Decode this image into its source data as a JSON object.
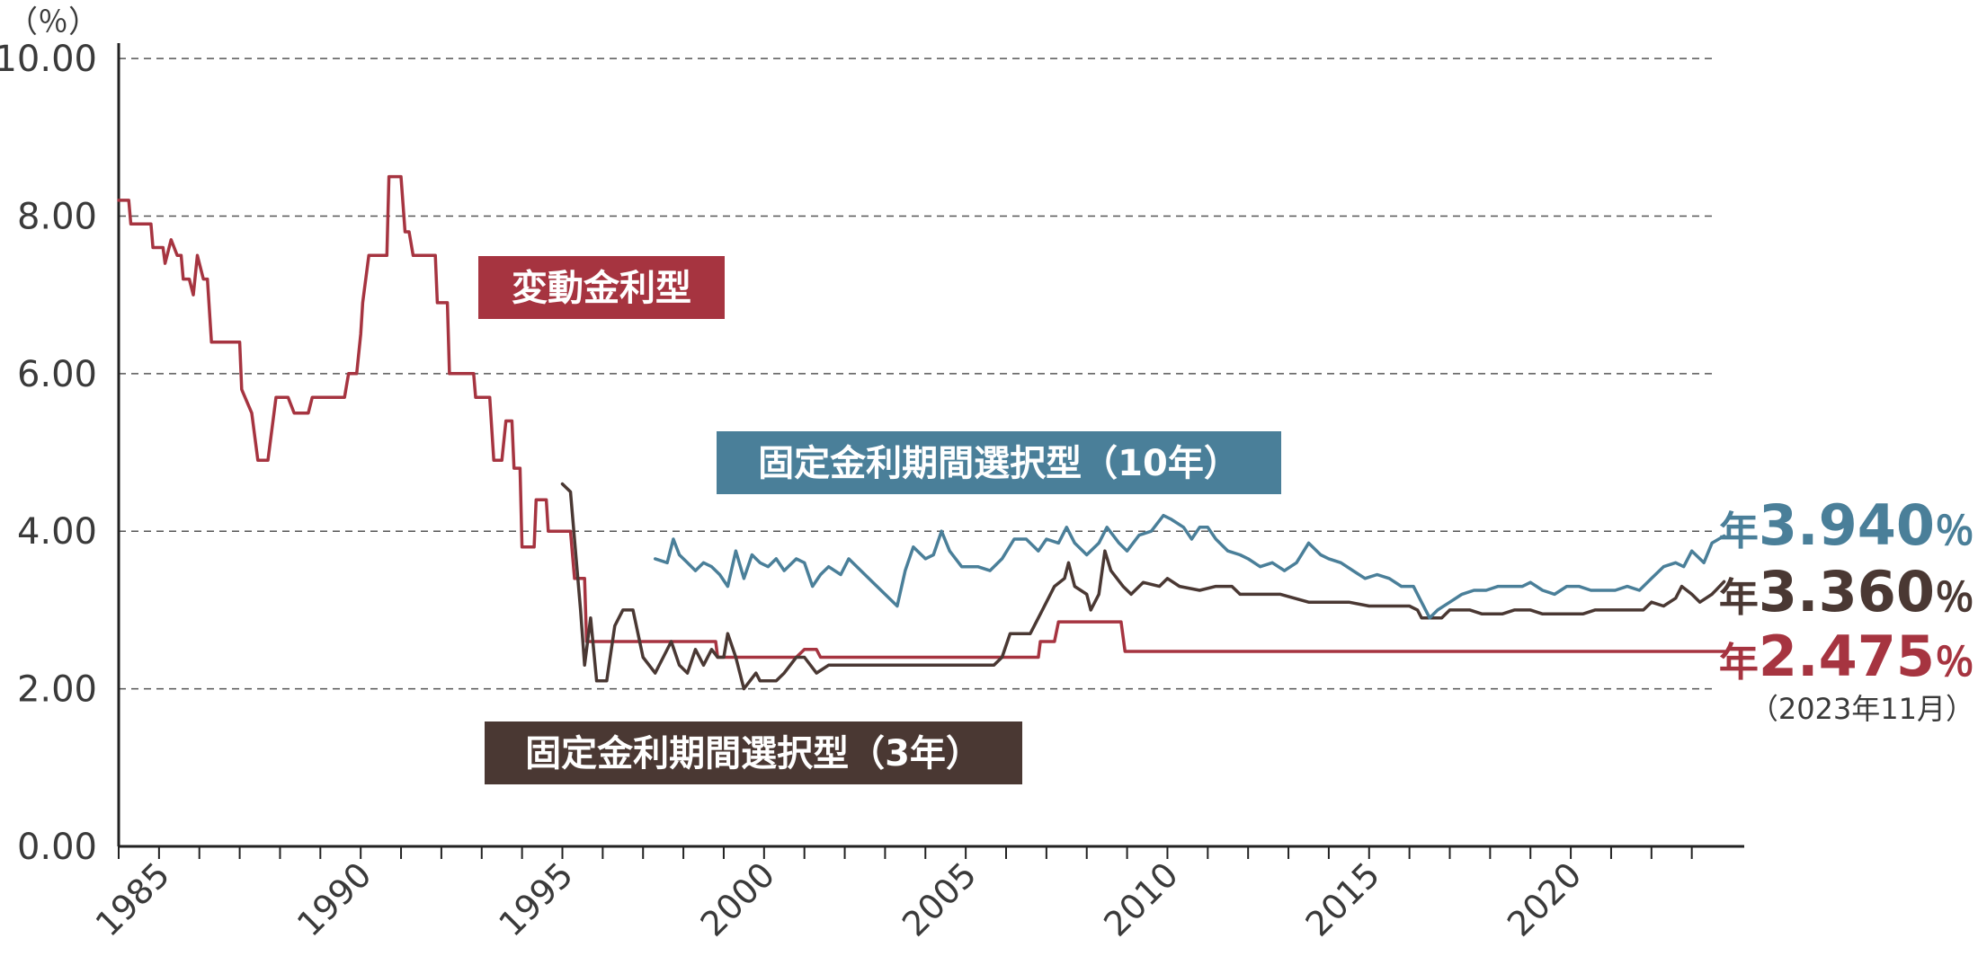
{
  "chart_data": {
    "type": "line",
    "unit_label": "（％）",
    "y_ticks": [
      "0.00",
      "2.00",
      "4.00",
      "6.00",
      "8.00",
      "10.00"
    ],
    "x_ticks": [
      "1985",
      "1990",
      "1995",
      "2000",
      "2005",
      "2010",
      "2015",
      "2020"
    ],
    "xlim": [
      1984,
      2024.3
    ],
    "ylim": [
      0,
      10.4
    ],
    "grid": "horizontal-dashed",
    "series": [
      {
        "name": "変動金利型",
        "color": "#a63440",
        "points": [
          [
            1984.0,
            8.2
          ],
          [
            1984.25,
            8.2
          ],
          [
            1984.3,
            7.9
          ],
          [
            1984.8,
            7.9
          ],
          [
            1984.85,
            7.6
          ],
          [
            1985.1,
            7.6
          ],
          [
            1985.15,
            7.4
          ],
          [
            1985.3,
            7.7
          ],
          [
            1985.45,
            7.5
          ],
          [
            1985.55,
            7.5
          ],
          [
            1985.6,
            7.2
          ],
          [
            1985.75,
            7.2
          ],
          [
            1985.85,
            7.0
          ],
          [
            1985.95,
            7.5
          ],
          [
            1986.1,
            7.2
          ],
          [
            1986.2,
            7.2
          ],
          [
            1986.3,
            6.4
          ],
          [
            1987.0,
            6.4
          ],
          [
            1987.05,
            5.8
          ],
          [
            1987.3,
            5.5
          ],
          [
            1987.45,
            4.9
          ],
          [
            1987.7,
            4.9
          ],
          [
            1987.9,
            5.7
          ],
          [
            1988.2,
            5.7
          ],
          [
            1988.35,
            5.5
          ],
          [
            1988.7,
            5.5
          ],
          [
            1988.8,
            5.7
          ],
          [
            1989.6,
            5.7
          ],
          [
            1989.7,
            6.0
          ],
          [
            1989.9,
            6.0
          ],
          [
            1990.0,
            6.5
          ],
          [
            1990.05,
            6.9
          ],
          [
            1990.2,
            7.5
          ],
          [
            1990.65,
            7.5
          ],
          [
            1990.7,
            8.5
          ],
          [
            1991.0,
            8.5
          ],
          [
            1991.1,
            7.8
          ],
          [
            1991.2,
            7.8
          ],
          [
            1991.3,
            7.5
          ],
          [
            1991.85,
            7.5
          ],
          [
            1991.9,
            6.9
          ],
          [
            1992.15,
            6.9
          ],
          [
            1992.2,
            6.0
          ],
          [
            1992.8,
            6.0
          ],
          [
            1992.85,
            5.7
          ],
          [
            1993.2,
            5.7
          ],
          [
            1993.3,
            4.9
          ],
          [
            1993.5,
            4.9
          ],
          [
            1993.6,
            5.4
          ],
          [
            1993.75,
            5.4
          ],
          [
            1993.8,
            4.8
          ],
          [
            1993.95,
            4.8
          ],
          [
            1994.0,
            3.8
          ],
          [
            1994.3,
            3.8
          ],
          [
            1994.35,
            4.4
          ],
          [
            1994.6,
            4.4
          ],
          [
            1994.65,
            4.0
          ],
          [
            1995.2,
            4.0
          ],
          [
            1995.3,
            3.4
          ],
          [
            1995.55,
            3.4
          ],
          [
            1995.6,
            2.6
          ],
          [
            1998.8,
            2.6
          ],
          [
            1998.85,
            2.4
          ],
          [
            2000.8,
            2.4
          ],
          [
            2001.0,
            2.5
          ],
          [
            2001.3,
            2.5
          ],
          [
            2001.4,
            2.4
          ],
          [
            2006.8,
            2.4
          ],
          [
            2006.85,
            2.6
          ],
          [
            2007.2,
            2.6
          ],
          [
            2007.3,
            2.85
          ],
          [
            2008.85,
            2.85
          ],
          [
            2008.95,
            2.475
          ],
          [
            2023.85,
            2.475
          ]
        ]
      },
      {
        "name": "固定金利期間選択型（3年）",
        "color": "#4a3833",
        "points": [
          [
            1995.0,
            4.6
          ],
          [
            1995.2,
            4.5
          ],
          [
            1995.45,
            3.0
          ],
          [
            1995.55,
            2.3
          ],
          [
            1995.7,
            2.9
          ],
          [
            1995.85,
            2.1
          ],
          [
            1996.1,
            2.1
          ],
          [
            1996.3,
            2.8
          ],
          [
            1996.5,
            3.0
          ],
          [
            1996.75,
            3.0
          ],
          [
            1997.0,
            2.4
          ],
          [
            1997.3,
            2.2
          ],
          [
            1997.5,
            2.4
          ],
          [
            1997.7,
            2.6
          ],
          [
            1997.9,
            2.3
          ],
          [
            1998.1,
            2.2
          ],
          [
            1998.3,
            2.5
          ],
          [
            1998.5,
            2.3
          ],
          [
            1998.7,
            2.5
          ],
          [
            1998.85,
            2.4
          ],
          [
            1999.0,
            2.4
          ],
          [
            1999.1,
            2.7
          ],
          [
            1999.3,
            2.4
          ],
          [
            1999.5,
            2.0
          ],
          [
            1999.8,
            2.2
          ],
          [
            1999.9,
            2.1
          ],
          [
            2000.3,
            2.1
          ],
          [
            2000.5,
            2.2
          ],
          [
            2000.8,
            2.4
          ],
          [
            2001.0,
            2.4
          ],
          [
            2001.3,
            2.2
          ],
          [
            2001.6,
            2.3
          ],
          [
            2003.0,
            2.3
          ],
          [
            2004.0,
            2.3
          ],
          [
            2005.0,
            2.3
          ],
          [
            2005.7,
            2.3
          ],
          [
            2005.9,
            2.4
          ],
          [
            2006.1,
            2.7
          ],
          [
            2006.6,
            2.7
          ],
          [
            2006.9,
            3.0
          ],
          [
            2007.2,
            3.3
          ],
          [
            2007.45,
            3.4
          ],
          [
            2007.55,
            3.6
          ],
          [
            2007.7,
            3.3
          ],
          [
            2008.0,
            3.2
          ],
          [
            2008.1,
            3.0
          ],
          [
            2008.3,
            3.2
          ],
          [
            2008.45,
            3.75
          ],
          [
            2008.6,
            3.5
          ],
          [
            2008.9,
            3.3
          ],
          [
            2009.1,
            3.2
          ],
          [
            2009.4,
            3.35
          ],
          [
            2009.8,
            3.3
          ],
          [
            2010.0,
            3.4
          ],
          [
            2010.3,
            3.3
          ],
          [
            2010.8,
            3.25
          ],
          [
            2011.2,
            3.3
          ],
          [
            2011.6,
            3.3
          ],
          [
            2011.8,
            3.2
          ],
          [
            2012.5,
            3.2
          ],
          [
            2012.8,
            3.2
          ],
          [
            2013.5,
            3.1
          ],
          [
            2014.5,
            3.1
          ],
          [
            2015.0,
            3.05
          ],
          [
            2016.0,
            3.05
          ],
          [
            2016.2,
            3.0
          ],
          [
            2016.3,
            2.9
          ],
          [
            2016.8,
            2.9
          ],
          [
            2017.0,
            3.0
          ],
          [
            2017.5,
            3.0
          ],
          [
            2017.8,
            2.95
          ],
          [
            2018.3,
            2.95
          ],
          [
            2018.6,
            3.0
          ],
          [
            2019.0,
            3.0
          ],
          [
            2019.3,
            2.95
          ],
          [
            2020.3,
            2.95
          ],
          [
            2020.6,
            3.0
          ],
          [
            2021.0,
            3.0
          ],
          [
            2021.8,
            3.0
          ],
          [
            2022.0,
            3.1
          ],
          [
            2022.3,
            3.05
          ],
          [
            2022.6,
            3.15
          ],
          [
            2022.75,
            3.3
          ],
          [
            2023.0,
            3.2
          ],
          [
            2023.2,
            3.1
          ],
          [
            2023.5,
            3.2
          ],
          [
            2023.8,
            3.36
          ]
        ]
      },
      {
        "name": "固定金利期間選択型（10年）",
        "color": "#4a7f99",
        "points": [
          [
            1997.3,
            3.65
          ],
          [
            1997.6,
            3.6
          ],
          [
            1997.75,
            3.9
          ],
          [
            1997.9,
            3.7
          ],
          [
            1998.1,
            3.6
          ],
          [
            1998.3,
            3.5
          ],
          [
            1998.5,
            3.6
          ],
          [
            1998.7,
            3.55
          ],
          [
            1998.9,
            3.45
          ],
          [
            1999.1,
            3.3
          ],
          [
            1999.3,
            3.75
          ],
          [
            1999.5,
            3.4
          ],
          [
            1999.7,
            3.7
          ],
          [
            1999.9,
            3.6
          ],
          [
            2000.1,
            3.55
          ],
          [
            2000.3,
            3.65
          ],
          [
            2000.5,
            3.5
          ],
          [
            2000.8,
            3.65
          ],
          [
            2001.0,
            3.6
          ],
          [
            2001.2,
            3.3
          ],
          [
            2001.4,
            3.45
          ],
          [
            2001.6,
            3.55
          ],
          [
            2001.9,
            3.45
          ],
          [
            2002.1,
            3.65
          ],
          [
            2002.4,
            3.5
          ],
          [
            2002.7,
            3.35
          ],
          [
            2003.0,
            3.2
          ],
          [
            2003.3,
            3.05
          ],
          [
            2003.5,
            3.5
          ],
          [
            2003.7,
            3.8
          ],
          [
            2004.0,
            3.65
          ],
          [
            2004.2,
            3.7
          ],
          [
            2004.4,
            4.0
          ],
          [
            2004.6,
            3.75
          ],
          [
            2004.9,
            3.55
          ],
          [
            2005.3,
            3.55
          ],
          [
            2005.6,
            3.5
          ],
          [
            2005.9,
            3.65
          ],
          [
            2006.2,
            3.9
          ],
          [
            2006.5,
            3.9
          ],
          [
            2006.8,
            3.75
          ],
          [
            2007.0,
            3.9
          ],
          [
            2007.3,
            3.85
          ],
          [
            2007.5,
            4.05
          ],
          [
            2007.7,
            3.85
          ],
          [
            2008.0,
            3.7
          ],
          [
            2008.3,
            3.85
          ],
          [
            2008.5,
            4.05
          ],
          [
            2008.8,
            3.85
          ],
          [
            2009.0,
            3.75
          ],
          [
            2009.3,
            3.95
          ],
          [
            2009.6,
            4.0
          ],
          [
            2009.9,
            4.2
          ],
          [
            2010.1,
            4.15
          ],
          [
            2010.4,
            4.05
          ],
          [
            2010.6,
            3.9
          ],
          [
            2010.8,
            4.05
          ],
          [
            2011.0,
            4.05
          ],
          [
            2011.2,
            3.9
          ],
          [
            2011.5,
            3.75
          ],
          [
            2011.8,
            3.7
          ],
          [
            2012.0,
            3.65
          ],
          [
            2012.3,
            3.55
          ],
          [
            2012.6,
            3.6
          ],
          [
            2012.9,
            3.5
          ],
          [
            2013.2,
            3.6
          ],
          [
            2013.5,
            3.85
          ],
          [
            2013.8,
            3.7
          ],
          [
            2014.0,
            3.65
          ],
          [
            2014.3,
            3.6
          ],
          [
            2014.6,
            3.5
          ],
          [
            2014.9,
            3.4
          ],
          [
            2015.2,
            3.45
          ],
          [
            2015.5,
            3.4
          ],
          [
            2015.8,
            3.3
          ],
          [
            2016.1,
            3.3
          ],
          [
            2016.3,
            3.1
          ],
          [
            2016.5,
            2.9
          ],
          [
            2016.7,
            3.0
          ],
          [
            2017.0,
            3.1
          ],
          [
            2017.3,
            3.2
          ],
          [
            2017.6,
            3.25
          ],
          [
            2017.9,
            3.25
          ],
          [
            2018.2,
            3.3
          ],
          [
            2018.5,
            3.3
          ],
          [
            2018.8,
            3.3
          ],
          [
            2019.0,
            3.35
          ],
          [
            2019.3,
            3.25
          ],
          [
            2019.6,
            3.2
          ],
          [
            2019.9,
            3.3
          ],
          [
            2020.2,
            3.3
          ],
          [
            2020.5,
            3.25
          ],
          [
            2020.8,
            3.25
          ],
          [
            2021.1,
            3.25
          ],
          [
            2021.4,
            3.3
          ],
          [
            2021.7,
            3.25
          ],
          [
            2022.0,
            3.4
          ],
          [
            2022.3,
            3.55
          ],
          [
            2022.6,
            3.6
          ],
          [
            2022.8,
            3.55
          ],
          [
            2023.0,
            3.75
          ],
          [
            2023.3,
            3.6
          ],
          [
            2023.5,
            3.85
          ],
          [
            2023.8,
            3.94
          ]
        ]
      }
    ],
    "labels": {
      "variable": "変動金利型",
      "fixed10": "固定金利期間選択型（10年）",
      "fixed3": "固定金利期間選択型（3年）"
    },
    "end_values": {
      "fixed10": {
        "prefix": "年",
        "value": "3.940",
        "suffix": "％"
      },
      "fixed3": {
        "prefix": "年",
        "value": "3.360",
        "suffix": "％"
      },
      "variable": {
        "prefix": "年",
        "value": "2.475",
        "suffix": "％"
      },
      "note": "（2023年11月）"
    }
  }
}
